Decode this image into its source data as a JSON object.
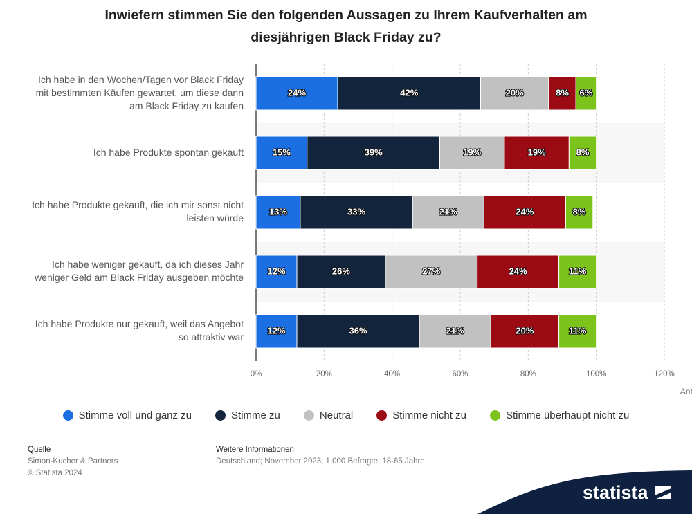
{
  "chart_data": {
    "type": "stacked_bar_horizontal",
    "title": "Inwiefern stimmen Sie den folgenden Aussagen zu Ihrem Kaufverhalten am diesjährigen Black Friday zu?",
    "x_label": "Anteil der Befragten",
    "categories": [
      "Ich habe in den Wochen/Tagen vor Black Friday mit bestimmten Käufen gewartet, um diese dann am Black Friday zu kaufen",
      "Ich habe Produkte spontan gekauft",
      "Ich habe Produkte gekauft, die ich mir sonst nicht leisten würde",
      "Ich habe weniger gekauft, da ich dieses Jahr weniger Geld am Black Friday ausgeben möchte",
      "Ich habe Produkte nur gekauft, weil das Angebot so attraktiv war"
    ],
    "series": [
      {
        "name": "Stimme voll und ganz zu",
        "color": "#1b6fe2",
        "values": [
          24,
          15,
          13,
          12,
          12
        ],
        "value_labels": [
          "24%",
          "15%",
          "13%",
          "12%",
          "12%"
        ]
      },
      {
        "name": "Stimme zu",
        "color": "#13253c",
        "values": [
          42,
          39,
          33,
          26,
          36
        ],
        "value_labels": [
          "42%",
          "39%",
          "33%",
          "26%",
          "36%"
        ]
      },
      {
        "name": "Neutral",
        "color": "#c1c1c1",
        "values": [
          20,
          19,
          21,
          27,
          21
        ],
        "value_labels": [
          "20%",
          "19%",
          "21%",
          "27%",
          "21%"
        ]
      },
      {
        "name": "Stimme nicht zu",
        "color": "#9c0b14",
        "values": [
          8,
          19,
          24,
          24,
          20
        ],
        "value_labels": [
          "8%",
          "19%",
          "24%",
          "24%",
          "20%"
        ]
      },
      {
        "name": "Stimme überhaupt nicht zu",
        "color": "#7cc31b",
        "values": [
          6,
          8,
          8,
          11,
          11
        ],
        "value_labels": [
          "6%",
          "8%",
          "8%",
          "11%",
          "11%"
        ]
      }
    ],
    "xlim": [
      0,
      120
    ],
    "xticks": [
      {
        "value": 0,
        "label": "0%"
      },
      {
        "value": 20,
        "label": "20%"
      },
      {
        "value": 40,
        "label": "40%"
      },
      {
        "value": 60,
        "label": "60%"
      },
      {
        "value": 80,
        "label": "80%"
      },
      {
        "value": 100,
        "label": "100%"
      },
      {
        "value": 120,
        "label": "120%"
      }
    ],
    "grid": true,
    "legend": "bottom"
  },
  "footer": {
    "source_title": "Quelle",
    "source": "Simon-Kucher & Partners",
    "copyright": "© Statista 2024",
    "info_title": "Weitere Informationen:",
    "info": "Deutschland; November 2023; 1.000 Befragte; 18-65 Jahre",
    "logo": "statista"
  }
}
